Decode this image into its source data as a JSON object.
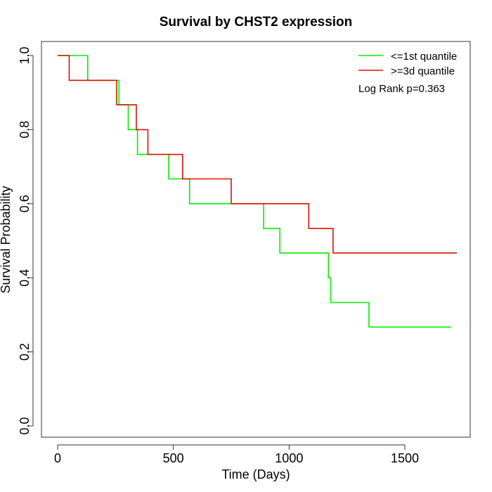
{
  "chart_data": {
    "type": "line",
    "title": "Survival by CHST2 expression",
    "xlabel": "Time (Days)",
    "ylabel": "Survival Probability",
    "xlim": [
      0,
      1730
    ],
    "ylim": [
      0,
      1
    ],
    "xticks": [
      0,
      500,
      1000,
      1500
    ],
    "yticks": [
      0.0,
      0.2,
      0.4,
      0.6,
      0.8,
      1.0
    ],
    "ytick_labels": [
      "0.0",
      "0.2",
      "0.4",
      "0.6",
      "0.8",
      "1.0"
    ],
    "grid": false,
    "legend_position": "top-right",
    "annotation": "Log Rank p=0.363",
    "series": [
      {
        "name": "<=1st quantile",
        "color": "#00ee00",
        "step": true,
        "x": [
          0,
          130,
          265,
          305,
          345,
          480,
          570,
          890,
          960,
          1170,
          1180,
          1345,
          1700
        ],
        "y": [
          1.0,
          0.933,
          0.867,
          0.8,
          0.733,
          0.667,
          0.6,
          0.533,
          0.467,
          0.4,
          0.333,
          0.267,
          0.267
        ]
      },
      {
        "name": ">=3d quantile",
        "color": "#dd1100",
        "step": true,
        "x": [
          0,
          50,
          255,
          340,
          390,
          540,
          750,
          1085,
          1190,
          1725
        ],
        "y": [
          1.0,
          0.933,
          0.867,
          0.8,
          0.733,
          0.667,
          0.6,
          0.533,
          0.467,
          0.467
        ]
      }
    ]
  }
}
